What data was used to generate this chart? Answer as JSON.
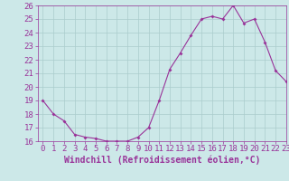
{
  "x": [
    0,
    1,
    2,
    3,
    4,
    5,
    6,
    7,
    8,
    9,
    10,
    11,
    12,
    13,
    14,
    15,
    16,
    17,
    18,
    19,
    20,
    21,
    22,
    23
  ],
  "y": [
    19.0,
    18.0,
    17.5,
    16.5,
    16.3,
    16.2,
    16.0,
    16.0,
    16.0,
    16.3,
    17.0,
    19.0,
    21.3,
    22.5,
    23.8,
    25.0,
    25.2,
    25.0,
    26.0,
    24.7,
    25.0,
    23.3,
    21.2,
    20.4
  ],
  "line_color": "#993399",
  "marker": "D",
  "marker_size": 2.0,
  "bg_color": "#cce8e8",
  "grid_color": "#aacccc",
  "xlabel": "Windchill (Refroidissement éolien,°C)",
  "ylim": [
    16,
    26
  ],
  "xlim": [
    -0.5,
    23
  ],
  "yticks": [
    16,
    17,
    18,
    19,
    20,
    21,
    22,
    23,
    24,
    25,
    26
  ],
  "xticks": [
    0,
    1,
    2,
    3,
    4,
    5,
    6,
    7,
    8,
    9,
    10,
    11,
    12,
    13,
    14,
    15,
    16,
    17,
    18,
    19,
    20,
    21,
    22,
    23
  ],
  "xlabel_fontsize": 7,
  "tick_fontsize": 6.5,
  "tick_color": "#993399",
  "axis_color": "#993399",
  "line_width": 0.8
}
